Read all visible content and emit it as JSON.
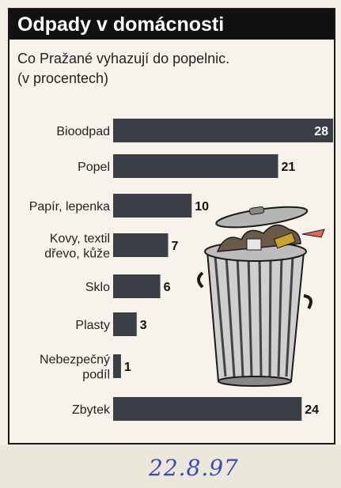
{
  "title": "Odpady v domácnosti",
  "subtitle_lines": [
    "Co Pražané vyhazují do popelnic.",
    "(v procentech)"
  ],
  "handwritten_date": "22.8.97",
  "colors": {
    "bar": "#3a3f47",
    "title_bg": "#111111",
    "label": "#222222",
    "date_ink": "#3a49b8"
  },
  "chart_data": {
    "type": "bar",
    "orientation": "horizontal",
    "title": "Odpady v domácnosti",
    "subtitle": "Co Pražané vyhazují do popelnic. (v procentech)",
    "unit": "%",
    "categories": [
      [
        "Bioodpad"
      ],
      [
        "Popel"
      ],
      [
        "Papír, lepenka"
      ],
      [
        "Kovy, textil",
        "dřevo, kůže"
      ],
      [
        "Sklo"
      ],
      [
        "Plasty"
      ],
      [
        "Nebezpečný",
        "podíl"
      ],
      [
        "Zbytek"
      ]
    ],
    "values": [
      28,
      21,
      10,
      7,
      6,
      3,
      1,
      24
    ],
    "value_labels": [
      "28",
      "21",
      "10",
      "7",
      "6",
      "3",
      "1",
      "24"
    ],
    "xlim": [
      0,
      28
    ],
    "grid": false,
    "legend": "none"
  },
  "illustration": "trash-can-icon"
}
